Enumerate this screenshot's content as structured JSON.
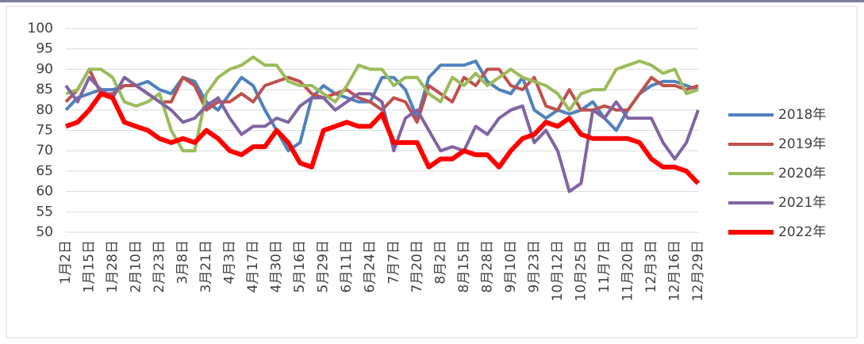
{
  "chart_data": {
    "type": "line",
    "categories": [
      "1月2日",
      null,
      "1月15日",
      null,
      "1月28日",
      null,
      "2月10日",
      null,
      "2月23日",
      null,
      "3月8日",
      null,
      "3月21日",
      null,
      "4月3日",
      null,
      "4月17日",
      null,
      "4月30日",
      null,
      "5月16日",
      null,
      "5月29日",
      null,
      "6月11日",
      null,
      "6月24日",
      null,
      "7月7日",
      null,
      "7月20日",
      null,
      "8月2日",
      null,
      "8月15日",
      null,
      "8月28日",
      null,
      "9月10日",
      null,
      "9月23日",
      null,
      "10月12日",
      null,
      "10月25日",
      null,
      "11月7日",
      null,
      "11月20日",
      null,
      "12月3日",
      null,
      "12月16日",
      null,
      "12月29日"
    ],
    "series": [
      {
        "name": "2018年",
        "color": "#4f81bd",
        "values": [
          80,
          83,
          84,
          85,
          85,
          86,
          86,
          87,
          85,
          84,
          88,
          87,
          82,
          80,
          84,
          88,
          86,
          80,
          75,
          70,
          72,
          83,
          86,
          84,
          83,
          82,
          82,
          88,
          88,
          85,
          78,
          88,
          91,
          91,
          91,
          92,
          87,
          85,
          84,
          88,
          80,
          78,
          80,
          79,
          80,
          82,
          78,
          75,
          80,
          84,
          86,
          87,
          87,
          86,
          85
        ]
      },
      {
        "name": "2019年",
        "color": "#c0504d",
        "values": [
          82,
          85,
          90,
          84,
          84,
          86,
          86,
          84,
          82,
          82,
          88,
          86,
          80,
          82,
          82,
          84,
          82,
          86,
          87,
          88,
          87,
          84,
          83,
          84,
          85,
          83,
          82,
          80,
          83,
          82,
          77,
          86,
          84,
          82,
          88,
          86,
          90,
          90,
          86,
          85,
          88,
          81,
          80,
          85,
          80,
          80,
          81,
          80,
          80,
          84,
          88,
          86,
          86,
          85,
          86
        ]
      },
      {
        "name": "2020年",
        "color": "#9bbb59",
        "values": [
          84,
          85,
          90,
          90,
          88,
          82,
          81,
          82,
          84,
          75,
          70,
          70,
          84,
          88,
          90,
          91,
          93,
          91,
          91,
          87,
          86,
          86,
          84,
          82,
          86,
          91,
          90,
          90,
          86,
          88,
          88,
          84,
          82,
          88,
          86,
          89,
          86,
          88,
          90,
          88,
          87,
          86,
          84,
          80,
          84,
          85,
          85,
          90,
          91,
          92,
          91,
          89,
          90,
          84,
          85
        ]
      },
      {
        "name": "2021年",
        "color": "#8064a2",
        "values": [
          86,
          82,
          88,
          85,
          83,
          88,
          86,
          84,
          82,
          80,
          77,
          78,
          81,
          83,
          78,
          74,
          76,
          76,
          78,
          77,
          81,
          83,
          83,
          80,
          82,
          84,
          84,
          82,
          70,
          78,
          80,
          75,
          70,
          71,
          70,
          76,
          74,
          78,
          80,
          81,
          72,
          75,
          70,
          60,
          62,
          80,
          78,
          82,
          78,
          78,
          78,
          72,
          68,
          72,
          80
        ]
      },
      {
        "name": "2022年",
        "color": "#ff0000",
        "values": [
          76,
          77,
          80,
          84,
          83,
          77,
          76,
          75,
          73,
          72,
          73,
          72,
          75,
          73,
          70,
          69,
          71,
          71,
          75,
          72,
          67,
          66,
          75,
          76,
          77,
          76,
          76,
          79,
          72,
          72,
          72,
          66,
          68,
          68,
          70,
          69,
          69,
          66,
          70,
          73,
          74,
          77,
          76,
          78,
          74,
          73,
          73,
          73,
          73,
          72,
          68,
          66,
          66,
          65,
          62
        ]
      }
    ],
    "ylim": [
      50,
      100
    ],
    "yticks": [
      50,
      55,
      60,
      65,
      70,
      75,
      80,
      85,
      90,
      95,
      100
    ],
    "grid": true
  }
}
